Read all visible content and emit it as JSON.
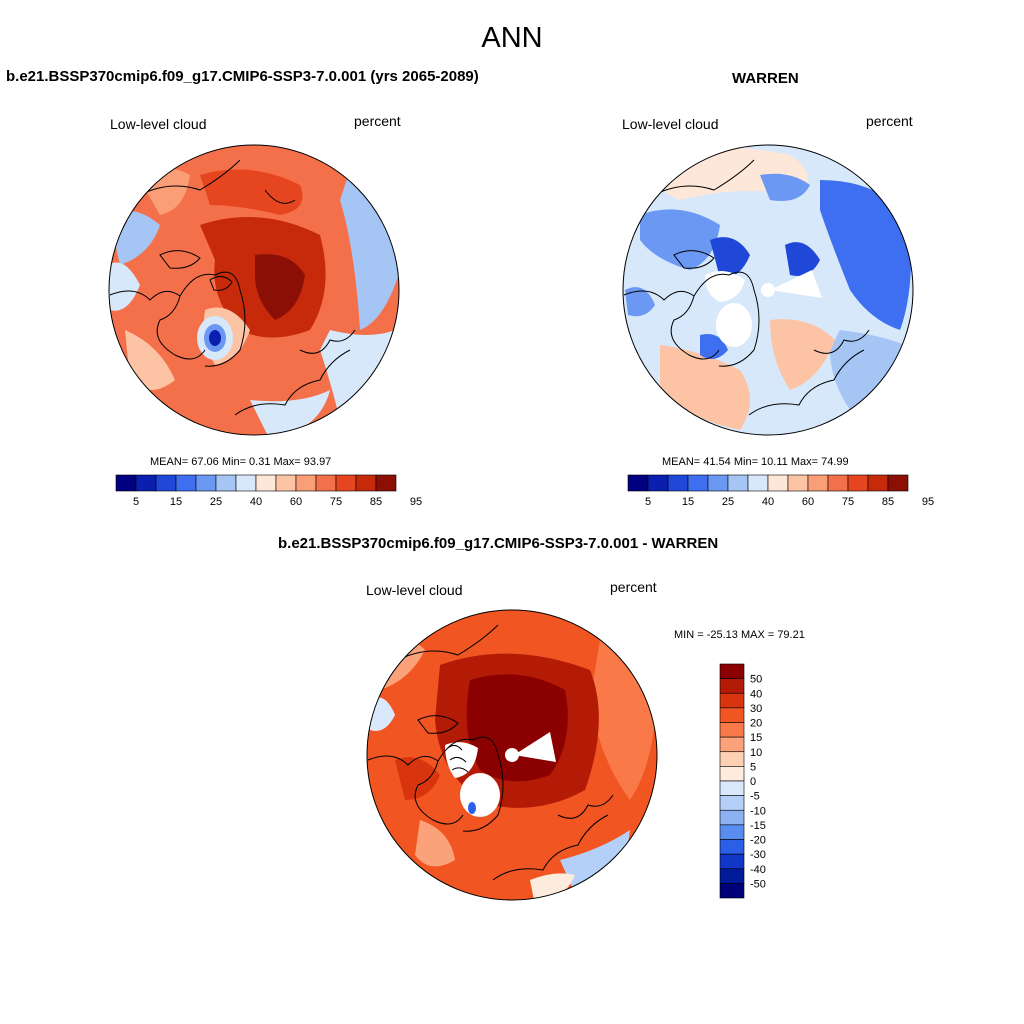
{
  "main_title": "ANN",
  "colors": {
    "abs_scale": [
      "#000080",
      "#0a1fb0",
      "#1f48d8",
      "#3d6ff0",
      "#6b98f2",
      "#a5c5f5",
      "#d7e8fb",
      "#fde7d8",
      "#fcc4a4",
      "#fa9e78",
      "#f4704a",
      "#e6461f",
      "#c72a0b",
      "#8c0f05"
    ],
    "diff_scale": [
      "#8b0000",
      "#b41b06",
      "#d8350f",
      "#f05522",
      "#f97a48",
      "#fba27a",
      "#fdd0b3",
      "#fdebdd",
      "#d9e8fb",
      "#b4cff8",
      "#8cb1f3",
      "#5a8df0",
      "#2c5fe8",
      "#1236c8",
      "#001a9a",
      "#000078"
    ]
  },
  "panels": {
    "top_left": {
      "title": "b.e21.BSSP370cmip6.f09_g17.CMIP6-SSP3-7.0.001 (yrs 2065-2089)",
      "left_label": "Low-level cloud",
      "right_label": "percent",
      "stats": "MEAN=  67.06  Min=   0.31  Max=  93.97"
    },
    "top_right": {
      "title": "WARREN",
      "left_label": "Low-level cloud",
      "right_label": "percent",
      "stats": "MEAN=  41.54  Min=  10.11  Max=  74.99"
    },
    "bottom": {
      "title": "b.e21.BSSP370cmip6.f09_g17.CMIP6-SSP3-7.0.001 - WARREN",
      "left_label": "Low-level cloud",
      "right_label": "percent",
      "stats": "MIN = -25.13 MAX =  79.21"
    }
  },
  "chart_data": [
    {
      "type": "heatmap",
      "projection": "north polar stereographic",
      "title": "b.e21.BSSP370cmip6.f09_g17.CMIP6-SSP3-7.0.001 (yrs 2065-2089)",
      "variable": "Low-level cloud",
      "units": "percent",
      "mean": 67.06,
      "min": 0.31,
      "max": 93.97,
      "colorbar_levels": [
        5,
        10,
        15,
        20,
        25,
        30,
        40,
        50,
        60,
        70,
        75,
        80,
        85,
        90,
        95
      ],
      "colorbar_tick_labels": [
        "5",
        "15",
        "25",
        "40",
        "60",
        "75",
        "85",
        "95"
      ],
      "colorbar_orientation": "horizontal"
    },
    {
      "type": "heatmap",
      "projection": "north polar stereographic",
      "title": "WARREN",
      "variable": "Low-level cloud",
      "units": "percent",
      "mean": 41.54,
      "min": 10.11,
      "max": 74.99,
      "colorbar_levels": [
        5,
        10,
        15,
        20,
        25,
        30,
        40,
        50,
        60,
        70,
        75,
        80,
        85,
        90,
        95
      ],
      "colorbar_tick_labels": [
        "5",
        "15",
        "25",
        "40",
        "60",
        "75",
        "85",
        "95"
      ],
      "colorbar_orientation": "horizontal"
    },
    {
      "type": "heatmap",
      "projection": "north polar stereographic",
      "title": "b.e21.BSSP370cmip6.f09_g17.CMIP6-SSP3-7.0.001 - WARREN",
      "variable": "Low-level cloud",
      "units": "percent",
      "min": -25.13,
      "max": 79.21,
      "colorbar_levels": [
        50,
        40,
        30,
        20,
        15,
        10,
        5,
        0,
        -5,
        -10,
        -15,
        -20,
        -30,
        -40,
        -50
      ],
      "colorbar_tick_labels": [
        "50",
        "40",
        "30",
        "20",
        "15",
        "10",
        "5",
        "0",
        "-5",
        "-10",
        "-15",
        "-20",
        "-30",
        "-40",
        "-50"
      ],
      "colorbar_orientation": "vertical"
    }
  ]
}
